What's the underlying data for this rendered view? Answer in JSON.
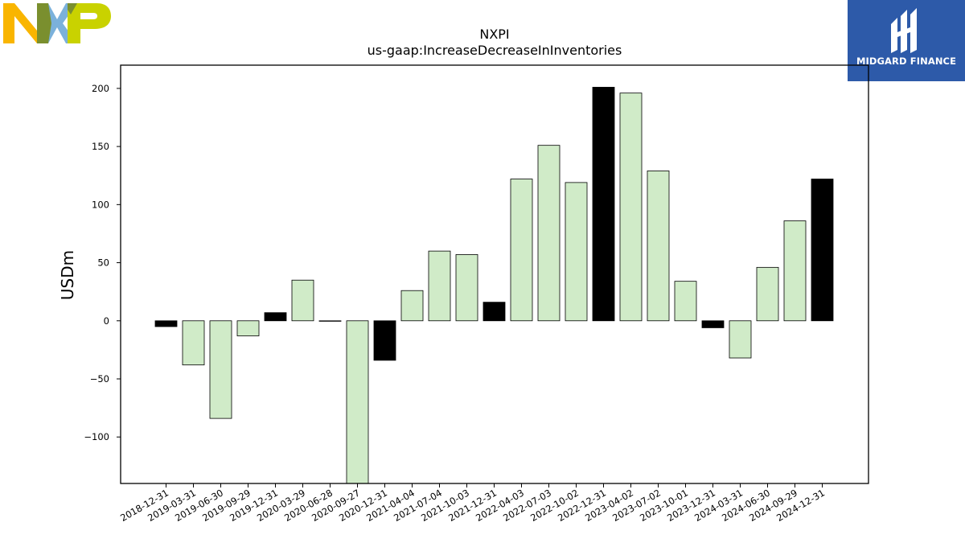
{
  "logos": {
    "left": "NXP",
    "right": "MIDGARD FINANCE"
  },
  "colors": {
    "positive": "#d0ebc8",
    "highlight": "#000000",
    "edge": "#000000",
    "midgard_bg": "#2d5aa9",
    "nxp_orange": "#f9b500",
    "nxp_blue": "#7bb1db",
    "nxp_green": "#c9d200"
  },
  "chart_data": {
    "type": "bar",
    "title": "NXPI",
    "subtitle": "us-gaap:IncreaseDecreaseInInventories",
    "xlabel": "",
    "ylabel": "USDm",
    "ylim": [
      -140,
      220
    ],
    "yticks": [
      -100,
      -50,
      0,
      50,
      100,
      150,
      200
    ],
    "ytick_labels": [
      "−100",
      "−50",
      "0",
      "50",
      "100",
      "150",
      "200"
    ],
    "grid": false,
    "categories": [
      "2018-12-31",
      "2019-03-31",
      "2019-06-30",
      "2019-09-29",
      "2019-12-31",
      "2020-03-29",
      "2020-06-28",
      "2020-09-27",
      "2020-12-31",
      "2021-04-04",
      "2021-07-04",
      "2021-10-03",
      "2021-12-31",
      "2022-04-03",
      "2022-07-03",
      "2022-10-02",
      "2022-12-31",
      "2023-04-02",
      "2023-07-02",
      "2023-10-01",
      "2023-12-31",
      "2024-03-31",
      "2024-06-30",
      "2024-09-29",
      "2024-12-31"
    ],
    "values": [
      -5,
      -38,
      -84,
      -13,
      7,
      35,
      0,
      -140,
      -34,
      26,
      60,
      57,
      16,
      122,
      151,
      119,
      201,
      196,
      129,
      34,
      -6,
      -32,
      46,
      86,
      122
    ],
    "highlight": [
      true,
      false,
      false,
      false,
      true,
      false,
      false,
      false,
      true,
      false,
      false,
      false,
      true,
      false,
      false,
      false,
      true,
      false,
      false,
      false,
      true,
      false,
      false,
      false,
      true
    ]
  }
}
